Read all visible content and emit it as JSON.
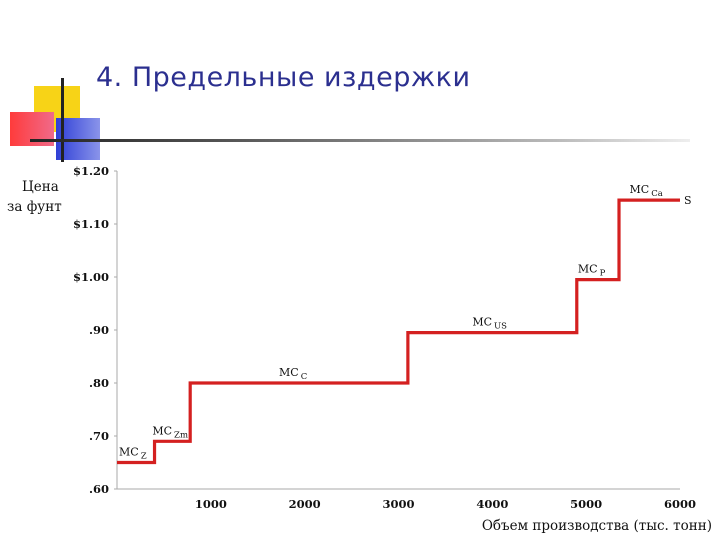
{
  "slide": {
    "title": "4. Предельные издержки",
    "accent_colors": {
      "title": "#2b2f8f",
      "yellow": "#f7d317",
      "red": "#ff3b3b",
      "blue": "#2f3fd6"
    }
  },
  "chart_data": {
    "type": "line",
    "step": true,
    "title": "",
    "xlabel": "Объем производства (тыс. тонн)",
    "ylabel": [
      "Цена",
      "за фунт"
    ],
    "xlim": [
      0,
      6000
    ],
    "ylim": [
      0.6,
      1.2
    ],
    "x_ticks": [
      1000,
      2000,
      3000,
      4000,
      5000,
      6000
    ],
    "x_tick_labels": [
      "1000",
      "2000",
      "3000",
      "4000",
      "5000",
      "6000"
    ],
    "y_ticks": [
      0.6,
      0.7,
      0.8,
      0.9,
      1.0,
      1.1,
      1.2
    ],
    "y_tick_labels": [
      ".60",
      ".70",
      ".80",
      ".90",
      "$1.00",
      "$1.10",
      "$1.20"
    ],
    "grid": false,
    "line_color": "#d42020",
    "steps": [
      {
        "x_start": 0,
        "x_end": 400,
        "y": 0.65,
        "label": "MC",
        "sub": "Z"
      },
      {
        "x_start": 400,
        "x_end": 780,
        "y": 0.69,
        "label": "MC",
        "sub": "Zm"
      },
      {
        "x_start": 780,
        "x_end": 3100,
        "y": 0.8,
        "label": "MC",
        "sub": "C"
      },
      {
        "x_start": 3100,
        "x_end": 4900,
        "y": 0.895,
        "label": "MC",
        "sub": "US"
      },
      {
        "x_start": 4900,
        "x_end": 5350,
        "y": 0.995,
        "label": "MC",
        "sub": "P"
      },
      {
        "x_start": 5350,
        "x_end": 6000,
        "y": 1.145,
        "label": "MC",
        "sub": "Ca"
      }
    ],
    "supply_label": "S"
  }
}
